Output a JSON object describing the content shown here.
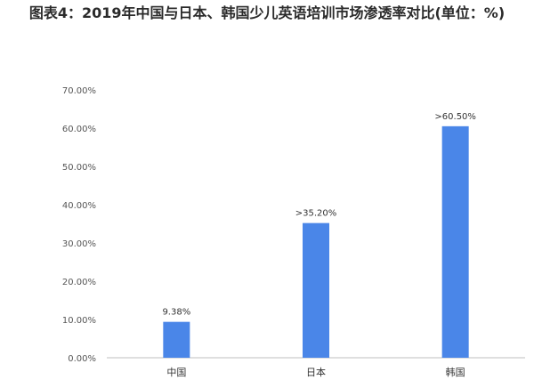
{
  "title": "图表4：2019年中国与日本、韩国少儿英语培训市场渗透率对比(单位：%)",
  "colors": {
    "bar": "#4a86e8",
    "axis": "#bfbfbf"
  },
  "chart_data": {
    "type": "bar",
    "title": "图表4：2019年中国与日本、韩国少儿英语培训市场渗透率对比(单位：%)",
    "categories": [
      "中国",
      "日本",
      "韩国"
    ],
    "values": [
      9.38,
      35.2,
      60.5
    ],
    "data_labels": [
      "9.38%",
      ">35.20%",
      ">60.50%"
    ],
    "ylim": [
      0,
      70
    ],
    "yticks": [
      0,
      10,
      20,
      30,
      40,
      50,
      60,
      70
    ],
    "ytick_labels": [
      "0.00%",
      "10.00%",
      "20.00%",
      "30.00%",
      "40.00%",
      "50.00%",
      "60.00%",
      "70.00%"
    ],
    "xlabel": "",
    "ylabel": "",
    "grid": false,
    "legend": "none"
  }
}
